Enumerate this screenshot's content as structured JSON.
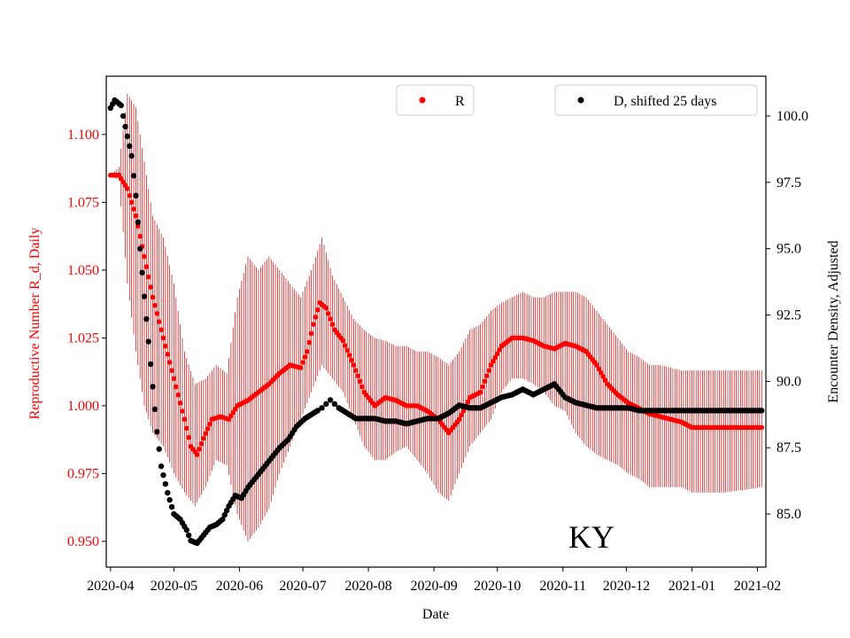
{
  "chart_data": {
    "type": "scatter",
    "state_label": "KY",
    "xlabel": "Date",
    "ylabel_left": "Reproductive Number R_d, Daily",
    "ylabel_right": "Encounter Density, Adjusted",
    "x_ticks": [
      "2020-04",
      "2020-05",
      "2020-06",
      "2020-07",
      "2020-08",
      "2020-09",
      "2020-10",
      "2020-11",
      "2020-12",
      "2021-01",
      "2021-02"
    ],
    "x_range_days": [
      -2,
      310
    ],
    "y_left": {
      "min": 0.9405,
      "max": 1.1215,
      "ticks": [
        "0.950",
        "0.975",
        "1.000",
        "1.025",
        "1.050",
        "1.075",
        "1.100"
      ]
    },
    "y_right": {
      "min": 83.0,
      "max": 101.5,
      "ticks": [
        "85.0",
        "87.5",
        "90.0",
        "92.5",
        "95.0",
        "97.5",
        "100.0"
      ]
    },
    "legend": {
      "r_label": "R",
      "d_label": "D, shifted 25 days",
      "r_position": "top-center",
      "d_position": "top-right"
    },
    "colors": {
      "r_series": "#ff0000",
      "error_bars": "#cc0000",
      "d_series": "#000000",
      "axis_left_text": "#ff0000"
    },
    "series": [
      {
        "name": "R",
        "axis": "left",
        "points": [
          [
            0,
            1.085
          ],
          [
            4,
            1.085
          ],
          [
            8,
            1.08
          ],
          [
            12,
            1.07
          ],
          [
            16,
            1.055
          ],
          [
            20,
            1.04
          ],
          [
            25,
            1.025
          ],
          [
            30,
            1.01
          ],
          [
            35,
            0.995
          ],
          [
            38,
            0.985
          ],
          [
            41,
            0.982
          ],
          [
            44,
            0.988
          ],
          [
            48,
            0.995
          ],
          [
            52,
            0.996
          ],
          [
            56,
            0.995
          ],
          [
            60,
            1.0
          ],
          [
            65,
            1.002
          ],
          [
            70,
            1.005
          ],
          [
            75,
            1.008
          ],
          [
            80,
            1.012
          ],
          [
            85,
            1.015
          ],
          [
            90,
            1.014
          ],
          [
            93,
            1.02
          ],
          [
            96,
            1.03
          ],
          [
            99,
            1.038
          ],
          [
            102,
            1.036
          ],
          [
            106,
            1.028
          ],
          [
            110,
            1.024
          ],
          [
            115,
            1.015
          ],
          [
            120,
            1.005
          ],
          [
            125,
            1.0
          ],
          [
            130,
            1.003
          ],
          [
            135,
            1.002
          ],
          [
            140,
            1.0
          ],
          [
            145,
            1.0
          ],
          [
            150,
            0.998
          ],
          [
            155,
            0.995
          ],
          [
            160,
            0.99
          ],
          [
            165,
            0.995
          ],
          [
            170,
            1.003
          ],
          [
            175,
            1.005
          ],
          [
            180,
            1.015
          ],
          [
            185,
            1.022
          ],
          [
            190,
            1.025
          ],
          [
            195,
            1.025
          ],
          [
            200,
            1.024
          ],
          [
            205,
            1.022
          ],
          [
            210,
            1.021
          ],
          [
            215,
            1.023
          ],
          [
            220,
            1.022
          ],
          [
            225,
            1.02
          ],
          [
            230,
            1.015
          ],
          [
            235,
            1.008
          ],
          [
            240,
            1.004
          ],
          [
            245,
            1.001
          ],
          [
            250,
            0.999
          ],
          [
            255,
            0.997
          ],
          [
            260,
            0.996
          ],
          [
            265,
            0.995
          ],
          [
            270,
            0.994
          ],
          [
            275,
            0.992
          ],
          [
            280,
            0.992
          ],
          [
            285,
            0.992
          ],
          [
            290,
            0.992
          ],
          [
            295,
            0.992
          ],
          [
            300,
            0.992
          ],
          [
            308,
            0.992
          ]
        ]
      },
      {
        "name": "R error band",
        "axis": "left",
        "points": [
          [
            0,
            1.085,
            1.085
          ],
          [
            4,
            1.083,
            1.088
          ],
          [
            8,
            1.045,
            1.115
          ],
          [
            12,
            1.02,
            1.11
          ],
          [
            16,
            1.0,
            1.09
          ],
          [
            20,
            0.99,
            1.07
          ],
          [
            25,
            0.985,
            1.062
          ],
          [
            30,
            0.975,
            1.045
          ],
          [
            35,
            0.968,
            1.02
          ],
          [
            40,
            0.963,
            1.008
          ],
          [
            45,
            0.97,
            1.01
          ],
          [
            50,
            0.98,
            1.015
          ],
          [
            55,
            0.978,
            1.012
          ],
          [
            60,
            0.96,
            1.04
          ],
          [
            65,
            0.95,
            1.055
          ],
          [
            70,
            0.955,
            1.05
          ],
          [
            75,
            0.962,
            1.055
          ],
          [
            80,
            0.975,
            1.05
          ],
          [
            85,
            0.985,
            1.045
          ],
          [
            90,
            0.995,
            1.04
          ],
          [
            95,
            1.005,
            1.05
          ],
          [
            100,
            1.015,
            1.062
          ],
          [
            105,
            1.01,
            1.048
          ],
          [
            110,
            1.005,
            1.04
          ],
          [
            115,
            0.995,
            1.032
          ],
          [
            120,
            0.985,
            1.028
          ],
          [
            125,
            0.98,
            1.025
          ],
          [
            130,
            0.98,
            1.024
          ],
          [
            135,
            0.983,
            1.022
          ],
          [
            140,
            0.985,
            1.022
          ],
          [
            145,
            0.98,
            1.02
          ],
          [
            150,
            0.975,
            1.02
          ],
          [
            155,
            0.968,
            1.018
          ],
          [
            160,
            0.965,
            1.015
          ],
          [
            165,
            0.975,
            1.02
          ],
          [
            170,
            0.985,
            1.028
          ],
          [
            175,
            0.99,
            1.03
          ],
          [
            180,
            0.995,
            1.035
          ],
          [
            185,
            1.005,
            1.038
          ],
          [
            190,
            1.01,
            1.04
          ],
          [
            195,
            1.01,
            1.042
          ],
          [
            200,
            1.008,
            1.04
          ],
          [
            205,
            1.005,
            1.04
          ],
          [
            210,
            1.0,
            1.042
          ],
          [
            215,
            0.998,
            1.042
          ],
          [
            220,
            0.99,
            1.042
          ],
          [
            225,
            0.985,
            1.04
          ],
          [
            230,
            0.982,
            1.035
          ],
          [
            235,
            0.98,
            1.03
          ],
          [
            240,
            0.978,
            1.025
          ],
          [
            245,
            0.975,
            1.02
          ],
          [
            250,
            0.973,
            1.018
          ],
          [
            255,
            0.97,
            1.015
          ],
          [
            260,
            0.97,
            1.015
          ],
          [
            265,
            0.97,
            1.014
          ],
          [
            270,
            0.97,
            1.013
          ],
          [
            275,
            0.968,
            1.013
          ],
          [
            280,
            0.968,
            1.013
          ],
          [
            290,
            0.968,
            1.013
          ],
          [
            300,
            0.969,
            1.013
          ],
          [
            308,
            0.97,
            1.013
          ]
        ]
      },
      {
        "name": "D, shifted 25 days",
        "axis": "right",
        "points": [
          [
            0,
            100.3
          ],
          [
            2,
            100.6
          ],
          [
            5,
            100.4
          ],
          [
            7,
            99.6
          ],
          [
            10,
            98.5
          ],
          [
            12,
            97.0
          ],
          [
            14,
            95.0
          ],
          [
            16,
            93.2
          ],
          [
            18,
            91.5
          ],
          [
            20,
            89.8
          ],
          [
            22,
            88.1
          ],
          [
            24,
            86.8
          ],
          [
            27,
            85.8
          ],
          [
            30,
            85.0
          ],
          [
            33,
            84.8
          ],
          [
            36,
            84.4
          ],
          [
            38,
            84.0
          ],
          [
            41,
            83.9
          ],
          [
            44,
            84.2
          ],
          [
            47,
            84.5
          ],
          [
            50,
            84.6
          ],
          [
            53,
            84.8
          ],
          [
            56,
            85.3
          ],
          [
            59,
            85.7
          ],
          [
            62,
            85.6
          ],
          [
            65,
            86.0
          ],
          [
            68,
            86.3
          ],
          [
            72,
            86.7
          ],
          [
            76,
            87.1
          ],
          [
            80,
            87.5
          ],
          [
            84,
            87.8
          ],
          [
            88,
            88.3
          ],
          [
            92,
            88.6
          ],
          [
            96,
            88.8
          ],
          [
            100,
            89.0
          ],
          [
            104,
            89.3
          ],
          [
            108,
            89.0
          ],
          [
            112,
            88.8
          ],
          [
            116,
            88.6
          ],
          [
            120,
            88.6
          ],
          [
            125,
            88.6
          ],
          [
            130,
            88.5
          ],
          [
            135,
            88.5
          ],
          [
            140,
            88.4
          ],
          [
            145,
            88.5
          ],
          [
            150,
            88.6
          ],
          [
            155,
            88.6
          ],
          [
            160,
            88.8
          ],
          [
            165,
            89.1
          ],
          [
            170,
            89.0
          ],
          [
            175,
            89.0
          ],
          [
            180,
            89.2
          ],
          [
            185,
            89.4
          ],
          [
            190,
            89.5
          ],
          [
            195,
            89.7
          ],
          [
            200,
            89.5
          ],
          [
            205,
            89.7
          ],
          [
            210,
            89.9
          ],
          [
            215,
            89.4
          ],
          [
            220,
            89.2
          ],
          [
            225,
            89.1
          ],
          [
            230,
            89.0
          ],
          [
            235,
            89.0
          ],
          [
            240,
            89.0
          ],
          [
            245,
            89.0
          ],
          [
            250,
            88.9
          ],
          [
            255,
            88.9
          ],
          [
            260,
            88.9
          ],
          [
            265,
            88.9
          ],
          [
            270,
            88.9
          ],
          [
            275,
            88.9
          ],
          [
            280,
            88.9
          ],
          [
            285,
            88.9
          ],
          [
            290,
            88.9
          ],
          [
            295,
            88.9
          ],
          [
            300,
            88.9
          ],
          [
            308,
            88.9
          ]
        ]
      }
    ]
  }
}
